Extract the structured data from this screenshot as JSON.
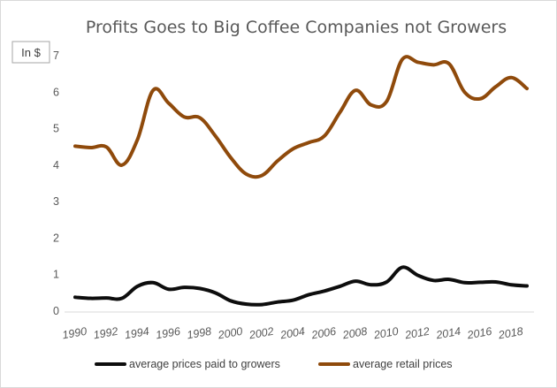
{
  "chart_data": {
    "type": "line",
    "title": "Profits Goes to Big Coffee Companies not Growers",
    "unit_label": "In $",
    "xlabel": "",
    "ylabel": "",
    "ylim": [
      0,
      7
    ],
    "yticks": [
      0,
      1,
      2,
      3,
      4,
      5,
      6,
      7
    ],
    "x": [
      1990,
      1991,
      1992,
      1993,
      1994,
      1995,
      1996,
      1997,
      1998,
      1999,
      2000,
      2001,
      2002,
      2003,
      2004,
      2005,
      2006,
      2007,
      2008,
      2009,
      2010,
      2011,
      2012,
      2013,
      2014,
      2015,
      2016,
      2017,
      2018,
      2019
    ],
    "xtick_labels": [
      "1990",
      "1992",
      "1994",
      "1996",
      "1998",
      "2000",
      "2002",
      "2004",
      "2006",
      "2008",
      "2010",
      "2012",
      "2014",
      "2016",
      "2018"
    ],
    "grid": false,
    "legend_position": "bottom",
    "series": [
      {
        "name": "average prices paid to growers",
        "color": "#0d0d0d",
        "values": [
          0.38,
          0.35,
          0.36,
          0.35,
          0.68,
          0.78,
          0.6,
          0.65,
          0.62,
          0.5,
          0.28,
          0.19,
          0.18,
          0.25,
          0.3,
          0.45,
          0.55,
          0.68,
          0.82,
          0.72,
          0.8,
          1.2,
          0.98,
          0.84,
          0.87,
          0.78,
          0.79,
          0.8,
          0.72,
          0.69
        ]
      },
      {
        "name": "average retail prices",
        "color": "#8f4a0b",
        "values": [
          4.52,
          4.48,
          4.5,
          4.0,
          4.7,
          6.05,
          5.7,
          5.32,
          5.3,
          4.8,
          4.2,
          3.75,
          3.72,
          4.12,
          4.45,
          4.62,
          4.8,
          5.45,
          6.05,
          5.65,
          5.75,
          6.9,
          6.82,
          6.75,
          6.78,
          6.0,
          5.82,
          6.15,
          6.4,
          6.1
        ]
      }
    ]
  }
}
